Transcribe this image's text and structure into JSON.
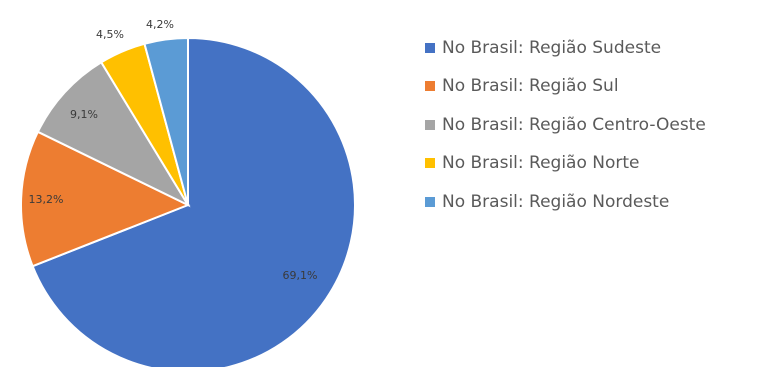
{
  "chart_data": {
    "type": "pie",
    "title": "",
    "categories": [
      "No Brasil: Região Sudeste",
      "No Brasil: Região Sul",
      "No Brasil: Região Centro-Oeste",
      "No Brasil: Região Norte",
      "No Brasil: Região Nordeste"
    ],
    "values": [
      69.1,
      13.2,
      9.1,
      4.5,
      4.2
    ],
    "data_labels": [
      "69,1%",
      "13,2%",
      "9,1%",
      "4,5%",
      "4,2%"
    ],
    "colors": [
      "#4472C4",
      "#ED7D31",
      "#A5A5A5",
      "#FFC000",
      "#5B9BD5"
    ],
    "legend_position": "right"
  }
}
